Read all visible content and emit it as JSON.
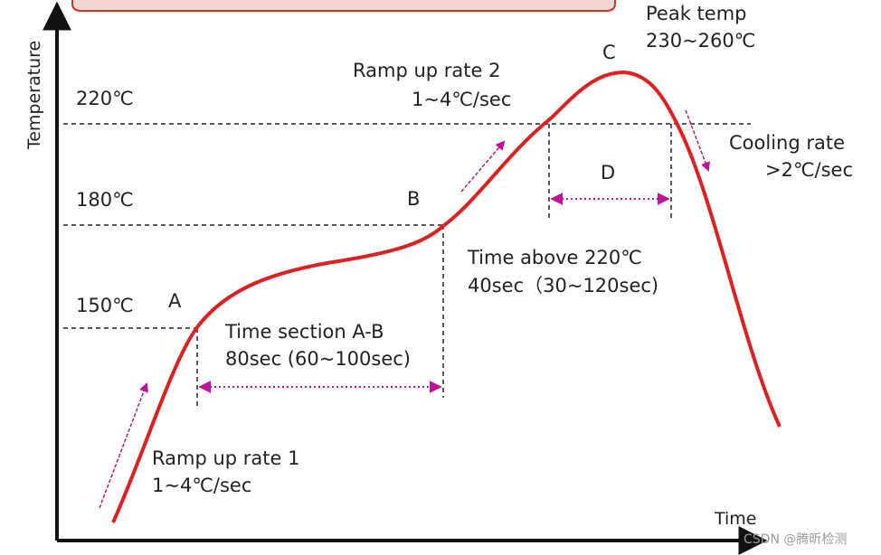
{
  "axes": {
    "y_label": "Temperature",
    "x_label": "Time"
  },
  "levels": [
    "220℃",
    "180℃",
    "150℃"
  ],
  "points": [
    "A",
    "B",
    "C",
    "D"
  ],
  "annotations": {
    "peak": [
      "Peak temp",
      "230~260℃"
    ],
    "ramp2": [
      "Ramp up rate 2",
      "1~4℃/sec"
    ],
    "cooling": [
      "Cooling rate",
      ">2℃/sec"
    ],
    "above": [
      "Time above 220℃",
      "40sec（30~120sec)"
    ],
    "section": [
      "Time section A-B",
      "80sec (60~100sec)"
    ],
    "ramp1": [
      "Ramp up rate 1",
      "1~4℃/sec"
    ]
  },
  "watermark": "CSDN @腾昕检测"
}
